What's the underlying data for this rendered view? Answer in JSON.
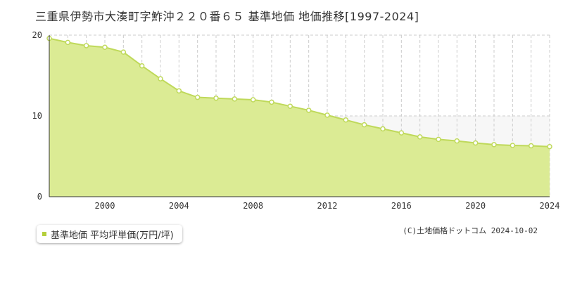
{
  "title": "三重県伊勢市大湊町字鮓沖２２０番６５ 基準地価 地価推移[1997-2024]",
  "legend": {
    "label": "基準地価 平均坪単価(万円/坪)"
  },
  "copyright": "(C)土地価格ドットコム 2024-10-02",
  "colors": {
    "fill": "#dbeb94",
    "line": "#bfd95a",
    "marker_fill": "#ffffff",
    "grid": "#cccccc",
    "legend_swatch": "#b5cf3c"
  },
  "chart_data": {
    "type": "area",
    "title": "",
    "xlabel": "",
    "ylabel": "",
    "x_ticks": [
      2000,
      2004,
      2008,
      2012,
      2016,
      2020,
      2024
    ],
    "y_ticks": [
      0,
      10,
      20
    ],
    "xlim": [
      1997,
      2024
    ],
    "ylim": [
      0,
      20
    ],
    "grid": true,
    "legend_position": "bottom-left",
    "series": [
      {
        "name": "基準地価 平均坪単価(万円/坪)",
        "x": [
          1997,
          1998,
          1999,
          2000,
          2001,
          2002,
          2003,
          2004,
          2005,
          2006,
          2007,
          2008,
          2009,
          2010,
          2011,
          2012,
          2013,
          2014,
          2015,
          2016,
          2017,
          2018,
          2019,
          2020,
          2021,
          2022,
          2023,
          2024
        ],
        "values": [
          19.6,
          19.1,
          18.7,
          18.5,
          17.9,
          16.2,
          14.6,
          13.1,
          12.3,
          12.2,
          12.1,
          12.0,
          11.7,
          11.2,
          10.7,
          10.1,
          9.5,
          8.9,
          8.4,
          7.9,
          7.4,
          7.1,
          6.9,
          6.65,
          6.45,
          6.35,
          6.3,
          6.2
        ]
      }
    ]
  }
}
